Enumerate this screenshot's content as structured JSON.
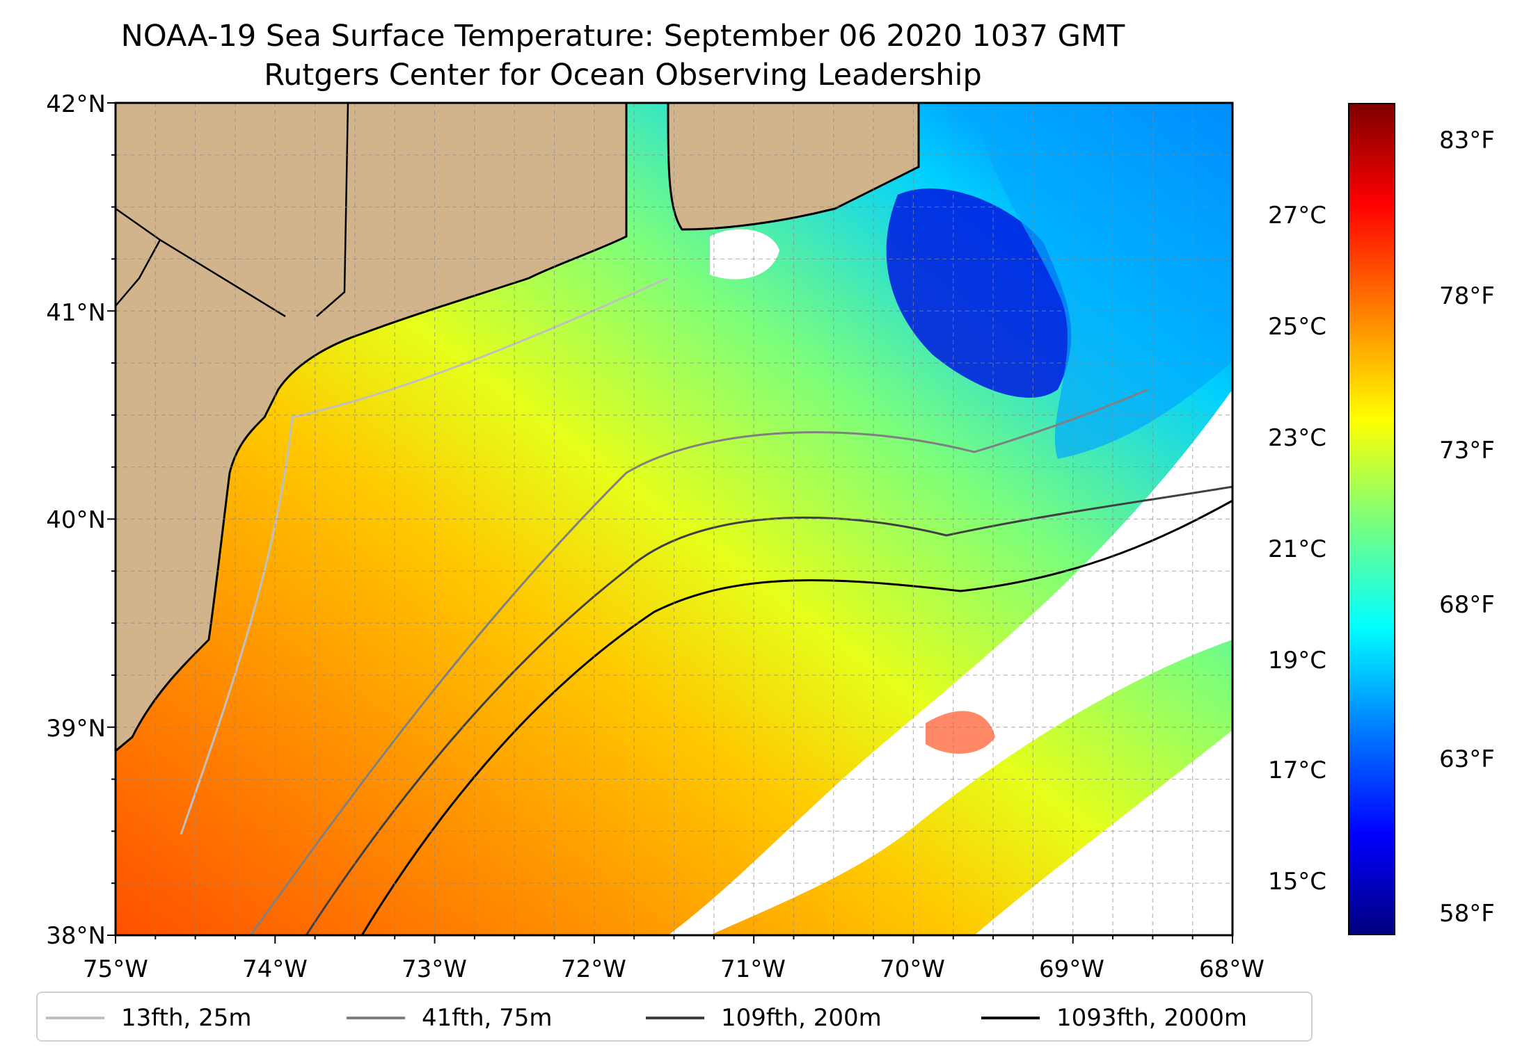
{
  "title": "NOAA-19 Sea Surface Temperature: September 06 2020 1037 GMT",
  "subtitle": "Rutgers Center for Ocean Observing Leadership",
  "map": {
    "lat_labels": [
      "42°N",
      "41°N",
      "40°N",
      "39°N",
      "38°N"
    ],
    "lon_labels": [
      "75°W",
      "74°W",
      "73°W",
      "72°W",
      "71°W",
      "70°W",
      "69°W",
      "68°W"
    ],
    "land_color": "#d2b48c",
    "no_data_color": "#ffffff"
  },
  "colorbar": {
    "celsius": [
      "27°C",
      "25°C",
      "23°C",
      "21°C",
      "19°C",
      "17°C",
      "15°C"
    ],
    "fahrenheit": [
      "83°F",
      "78°F",
      "73°F",
      "68°F",
      "63°F",
      "58°F"
    ],
    "colormap": "jet"
  },
  "legend": [
    {
      "label": "13fth, 25m",
      "color": "#c0c0c0"
    },
    {
      "label": "41fth, 75m",
      "color": "#808080"
    },
    {
      "label": "109fth, 200m",
      "color": "#404040"
    },
    {
      "label": "1093fth, 2000m",
      "color": "#000000"
    }
  ]
}
